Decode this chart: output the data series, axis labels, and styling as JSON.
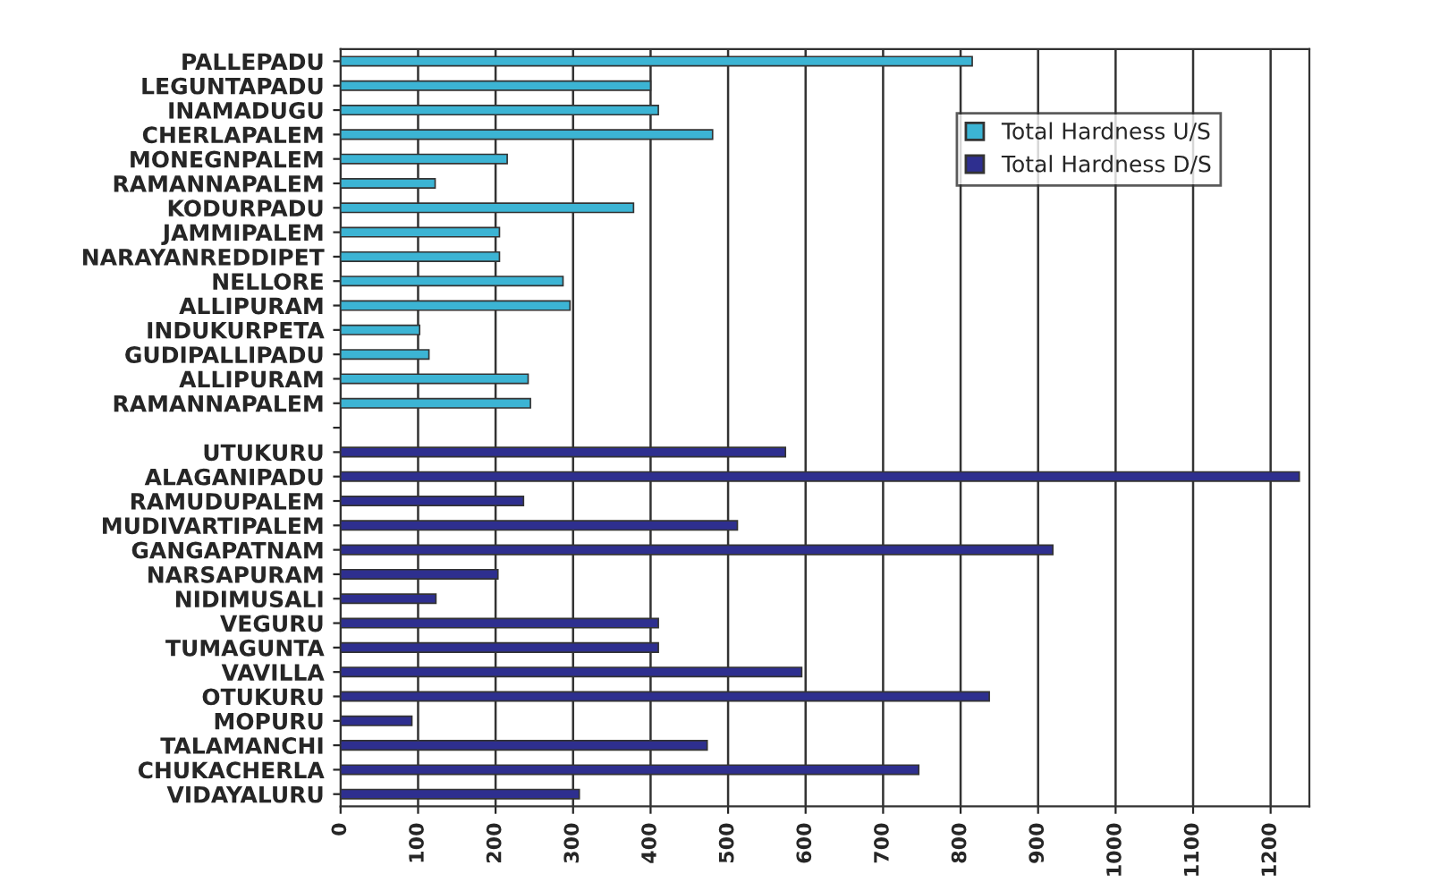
{
  "chart_data": {
    "type": "bar",
    "orientation": "horizontal",
    "categories": [
      "PALLEPADU",
      "LEGUNTAPADU",
      "INAMADUGU",
      "CHERLAPALEM",
      "MONEGNPALEM",
      "RAMANNAPALEM",
      "KODURPADU",
      "JAMMIPALEM",
      "NARAYANREDDIPET",
      "NELLORE",
      "ALLIPURAM",
      "INDUKURPETA",
      "GUDIPALLIPADU",
      "ALLIPURAM",
      "RAMANNAPALEM",
      null,
      "UTUKURU",
      "ALAGANIPADU",
      "RAMUDUPALEM",
      "MUDIVARTIPALEM",
      "GANGAPATNAM",
      "NARSAPURAM",
      "NIDIMUSALI",
      "VEGURU",
      "TUMAGUNTA",
      "VAVILLA",
      "OTUKURU",
      "MOPURU",
      "TALAMANCHI",
      "CHUKACHERLA",
      "VIDAYALURU"
    ],
    "series": [
      {
        "name": "Total Hardness U/S",
        "color": "#3cb4d4",
        "values": [
          815,
          400,
          410,
          480,
          215,
          122,
          378,
          205,
          205,
          287,
          296,
          102,
          114,
          242,
          245,
          null,
          null,
          null,
          null,
          null,
          null,
          null,
          null,
          null,
          null,
          null,
          null,
          null,
          null,
          null,
          null
        ]
      },
      {
        "name": "Total Hardness D/S",
        "color": "#2e2f8f",
        "values": [
          null,
          null,
          null,
          null,
          null,
          null,
          null,
          null,
          null,
          null,
          null,
          null,
          null,
          null,
          null,
          null,
          574,
          1237,
          236,
          512,
          919,
          203,
          123,
          410,
          410,
          595,
          837,
          92,
          473,
          746,
          308
        ]
      }
    ],
    "xlim": [
      0,
      1250
    ],
    "xticks": [
      0,
      100,
      200,
      300,
      400,
      500,
      600,
      700,
      800,
      900,
      1000,
      1100,
      1200
    ],
    "grid": "x",
    "legend": "top right"
  }
}
